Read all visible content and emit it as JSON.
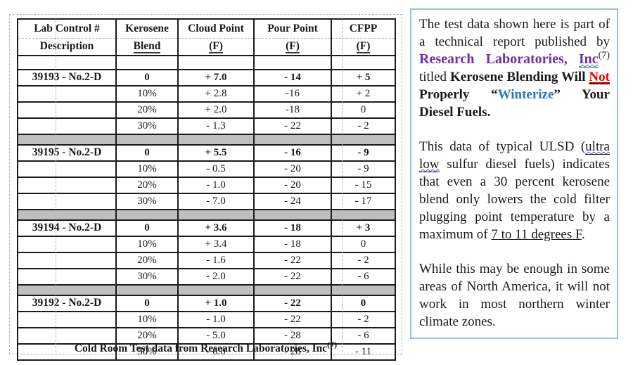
{
  "colors": {
    "brand_purple": "#7030A0",
    "not_red": "#F00000",
    "winterize_blue": "#2E74C0",
    "separator_gray": "#BFBFBF",
    "panel_border_blue": "#9CBEDD",
    "gridline_dashed_blue": "#A3B8CC",
    "table_border": "#1B1B1B"
  },
  "table": {
    "headers": [
      [
        "Lab Control #",
        "Description"
      ],
      [
        "Kerosene",
        "Blend"
      ],
      [
        "Cloud Point",
        "(F)"
      ],
      [
        "Pour Point",
        "(F)"
      ],
      [
        "CFPP",
        "(F)"
      ]
    ],
    "groups": [
      {
        "label": "39193 - No.2-D",
        "rows": [
          [
            "0",
            "+ 7.0",
            "- 14",
            "+ 5"
          ],
          [
            "10%",
            "+ 2.8",
            "-16",
            "+ 2"
          ],
          [
            "20%",
            "+ 2.0",
            "-18",
            "0"
          ],
          [
            "30%",
            "- 1.3",
            "- 22",
            "- 2"
          ]
        ]
      },
      {
        "label": "39195 - No.2-D",
        "rows": [
          [
            "0",
            "+ 5.5",
            "- 16",
            "- 9"
          ],
          [
            "10%",
            "- 0.5",
            "- 20",
            "- 9"
          ],
          [
            "20%",
            "- 1.0",
            "- 20",
            "- 15"
          ],
          [
            "30%",
            "- 7.0",
            "- 24",
            "- 17"
          ]
        ]
      },
      {
        "label": "39194 - No.2-D",
        "rows": [
          [
            "0",
            "+ 3.6",
            "- 18",
            "+ 3"
          ],
          [
            "10%",
            "+ 3.4",
            "- 18",
            "0"
          ],
          [
            "20%",
            "- 1.6",
            "- 22",
            "- 2"
          ],
          [
            "30%",
            "- 2.0",
            "- 22",
            "- 6"
          ]
        ]
      },
      {
        "label": "39192 - No.2-D",
        "rows": [
          [
            "0",
            "+ 1.0",
            "- 22",
            "0"
          ],
          [
            "10%",
            "- 1.0",
            "- 22",
            "- 2"
          ],
          [
            "20%",
            "- 5.0",
            "- 28",
            "- 6"
          ],
          [
            "30%",
            "- 6.0",
            "- 28",
            "- 11"
          ]
        ]
      }
    ],
    "footer": "Cold Room Test data from Research Laboratories, Inc",
    "footer_sup": "(7)"
  },
  "panel": {
    "paragraphs": [
      {
        "segments": [
          {
            "t": "The test data shown here is part of a technical report published by "
          },
          {
            "t": "Research Laboratories, ",
            "s": "brand"
          },
          {
            "t": "Inc",
            "s": "brand-u"
          },
          {
            "t": "(7)",
            "s": "sup"
          },
          {
            "t": " titled "
          },
          {
            "t": "Kerosene Blending Will ",
            "s": "bold"
          },
          {
            "t": "Not",
            "s": "not"
          },
          {
            "t": " Properly ",
            "s": "bold"
          },
          {
            "t": "“",
            "s": "bold"
          },
          {
            "t": "Winterize",
            "s": "winterize"
          },
          {
            "t": "”",
            "s": "bold"
          },
          {
            "t": " Your Diesel Fuels.",
            "s": "bold"
          }
        ]
      },
      {
        "segments": [
          {
            "t": "This data of typical ULSD ("
          },
          {
            "t": "ultra low",
            "s": "ultra"
          },
          {
            "t": " sulfur diesel fuels) indicates that even a 30 percent kerosene blend only lowers the cold filter plugging point temperature by a maximum of "
          },
          {
            "t": "7 to 11 degrees F",
            "s": "u"
          },
          {
            "t": "."
          }
        ]
      },
      {
        "segments": [
          {
            "t": "While this may be enough in some areas of North America, it will not work in most northern winter climate zones."
          }
        ]
      }
    ]
  }
}
